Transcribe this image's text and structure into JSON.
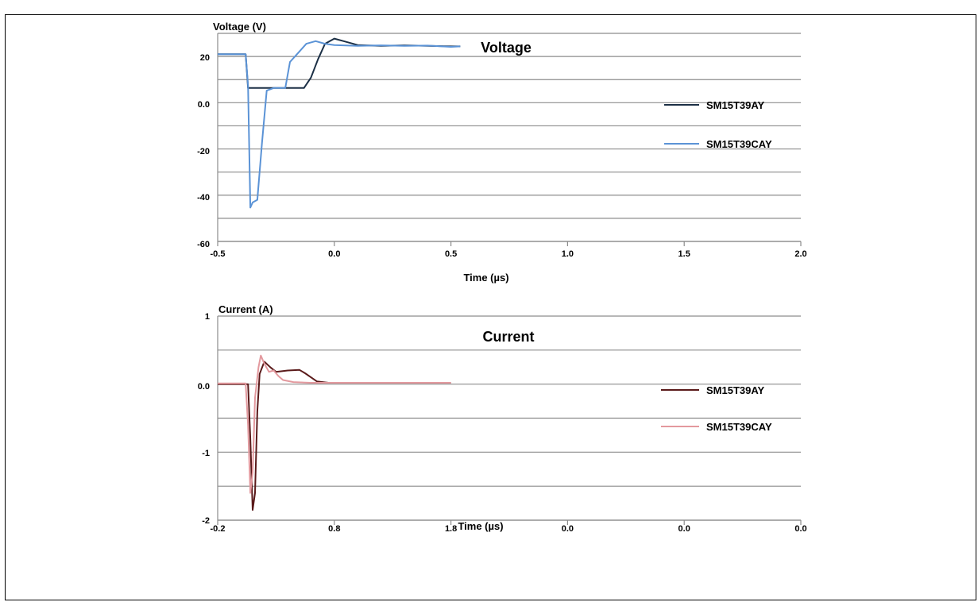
{
  "chart_data": [
    {
      "type": "line",
      "title": "Voltage",
      "xlabel": "Time (µs)",
      "ylabel": "Voltage (V)",
      "xlim": [
        -0.5,
        2.0
      ],
      "ylim": [
        -60,
        20
      ],
      "x_ticks": [
        "-0.5",
        "0.0",
        "0.5",
        "1.0",
        "1.5",
        "2.0"
      ],
      "y_ticks": [
        "20",
        "0.0",
        "-20",
        "-40",
        "-60"
      ],
      "grid": true,
      "legend": "right",
      "series": [
        {
          "name": "SM15T39AY",
          "color": "#1b2f45",
          "points": [
            [
              -0.5,
              12
            ],
            [
              -0.38,
              12
            ],
            [
              -0.37,
              -1
            ],
            [
              -0.3,
              -1
            ],
            [
              -0.2,
              -1
            ],
            [
              -0.13,
              -1
            ],
            [
              -0.1,
              3
            ],
            [
              -0.07,
              10
            ],
            [
              -0.04,
              16
            ],
            [
              0.0,
              18
            ],
            [
              0.04,
              17
            ],
            [
              0.1,
              15.5
            ],
            [
              0.2,
              15.2
            ],
            [
              0.3,
              15.4
            ],
            [
              0.4,
              15.2
            ],
            [
              0.5,
              15
            ],
            [
              0.54,
              15
            ]
          ]
        },
        {
          "name": "SM15T39CAY",
          "color": "#5b93d6",
          "points": [
            [
              -0.5,
              12
            ],
            [
              -0.38,
              12
            ],
            [
              -0.37,
              0
            ],
            [
              -0.36,
              -47
            ],
            [
              -0.35,
              -45
            ],
            [
              -0.33,
              -44
            ],
            [
              -0.31,
              -22
            ],
            [
              -0.29,
              -2
            ],
            [
              -0.26,
              -1
            ],
            [
              -0.21,
              -1
            ],
            [
              -0.19,
              9
            ],
            [
              -0.15,
              13
            ],
            [
              -0.12,
              16
            ],
            [
              -0.08,
              17
            ],
            [
              -0.04,
              16
            ],
            [
              0.0,
              15.5
            ],
            [
              0.1,
              15.2
            ],
            [
              0.2,
              15.4
            ],
            [
              0.3,
              15.2
            ],
            [
              0.4,
              15.3
            ],
            [
              0.5,
              14.8
            ],
            [
              0.54,
              15
            ]
          ]
        }
      ]
    },
    {
      "type": "line",
      "title": "Current",
      "xlabel": "Time (µs)",
      "ylabel": "Current (A)",
      "xlim": [
        -0.2,
        4.8
      ],
      "ylim": [
        -2,
        1
      ],
      "x_ticks": [
        "-0.2",
        "0.8",
        "1.8",
        "0.0",
        "0.0",
        "0.0"
      ],
      "y_ticks": [
        "1",
        "0.0",
        "-1",
        "-2"
      ],
      "grid": true,
      "legend": "right",
      "series": [
        {
          "name": "SM15T39AY",
          "color": "#5a1a1a",
          "points": [
            [
              -0.2,
              0.0
            ],
            [
              0.06,
              0.0
            ],
            [
              0.08,
              -0.8
            ],
            [
              0.1,
              -1.85
            ],
            [
              0.12,
              -1.6
            ],
            [
              0.14,
              -0.4
            ],
            [
              0.16,
              0.15
            ],
            [
              0.2,
              0.33
            ],
            [
              0.25,
              0.25
            ],
            [
              0.3,
              0.18
            ],
            [
              0.4,
              0.2
            ],
            [
              0.5,
              0.21
            ],
            [
              0.55,
              0.16
            ],
            [
              0.6,
              0.1
            ],
            [
              0.65,
              0.04
            ],
            [
              0.75,
              0.02
            ],
            [
              1.0,
              0.02
            ],
            [
              1.4,
              0.02
            ],
            [
              1.8,
              0.02
            ]
          ]
        },
        {
          "name": "SM15T39CAY",
          "color": "#e3999e",
          "points": [
            [
              -0.2,
              0.01
            ],
            [
              0.04,
              0.01
            ],
            [
              0.06,
              -0.6
            ],
            [
              0.08,
              -1.6
            ],
            [
              0.1,
              -1.3
            ],
            [
              0.12,
              -0.2
            ],
            [
              0.15,
              0.25
            ],
            [
              0.17,
              0.42
            ],
            [
              0.2,
              0.3
            ],
            [
              0.24,
              0.18
            ],
            [
              0.28,
              0.2
            ],
            [
              0.32,
              0.12
            ],
            [
              0.36,
              0.06
            ],
            [
              0.45,
              0.03
            ],
            [
              0.6,
              0.02
            ],
            [
              1.0,
              0.02
            ],
            [
              1.4,
              0.02
            ],
            [
              1.8,
              0.02
            ]
          ]
        }
      ]
    }
  ]
}
